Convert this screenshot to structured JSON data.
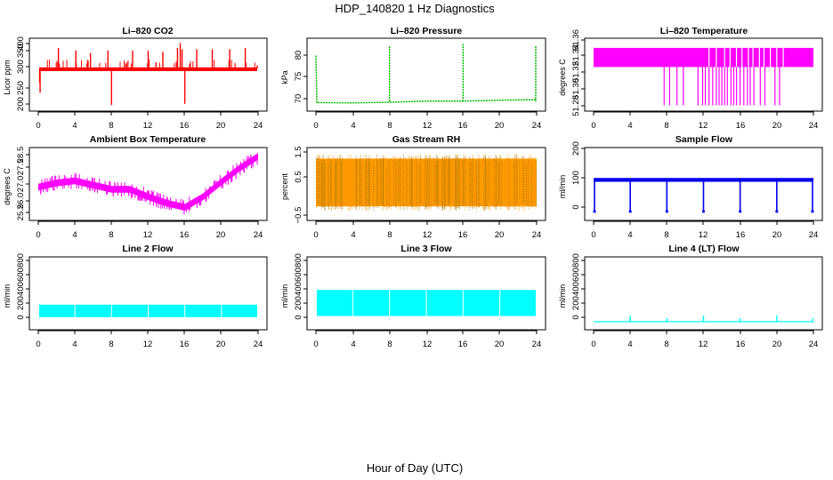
{
  "figure": {
    "title": "HDP_140820  1 Hz Diagnostics",
    "xlabel": "Hour of Day (UTC)"
  },
  "chart_data": [
    {
      "type": "line",
      "title": "Li–820 CO2",
      "ylabel": "Licor ppm",
      "color": "#ff0000",
      "x_ticks": [
        "0",
        "4",
        "8",
        "12",
        "16",
        "20",
        "24"
      ],
      "y_ticks": [
        "200",
        "250",
        "300",
        "350",
        "400"
      ],
      "xlim": [
        0,
        24
      ],
      "ylim": [
        180,
        445
      ],
      "baseline": 337,
      "band_low": 327,
      "band_high": 342,
      "spikes": [
        {
          "x": 0.15,
          "y": 280
        },
        {
          "x": 0.2,
          "y": 240
        },
        {
          "x": 2.2,
          "y": 420
        },
        {
          "x": 4.1,
          "y": 410
        },
        {
          "x": 5.7,
          "y": 400
        },
        {
          "x": 7.6,
          "y": 410
        },
        {
          "x": 8.0,
          "y": 190
        },
        {
          "x": 10.3,
          "y": 410
        },
        {
          "x": 12.0,
          "y": 410
        },
        {
          "x": 13.6,
          "y": 405
        },
        {
          "x": 15.2,
          "y": 420
        },
        {
          "x": 15.5,
          "y": 440
        },
        {
          "x": 15.7,
          "y": 415
        },
        {
          "x": 16.0,
          "y": 195
        },
        {
          "x": 17.3,
          "y": 415
        },
        {
          "x": 19.0,
          "y": 415
        },
        {
          "x": 20.9,
          "y": 415
        },
        {
          "x": 22.6,
          "y": 420
        },
        {
          "x": 23.9,
          "y": 350
        }
      ]
    },
    {
      "type": "line",
      "title": "Li–820 Pressure",
      "ylabel": "kPa",
      "color": "#00bb00",
      "x_ticks": [
        "0",
        "4",
        "8",
        "12",
        "16",
        "20",
        "24"
      ],
      "y_ticks": [
        "70",
        "75",
        "80"
      ],
      "xlim": [
        0,
        24
      ],
      "ylim": [
        66.3,
        88.7
      ],
      "points": [
        {
          "x": 0,
          "y": 84
        },
        {
          "x": 0.1,
          "y": 68
        },
        {
          "x": 4,
          "y": 67.9
        },
        {
          "x": 8,
          "y": 68.1
        },
        {
          "x": 12,
          "y": 68.5
        },
        {
          "x": 16,
          "y": 68.5
        },
        {
          "x": 20,
          "y": 68.8
        },
        {
          "x": 24,
          "y": 69
        }
      ],
      "spikes": [
        {
          "x": 8.0,
          "y": 87.5
        },
        {
          "x": 16.0,
          "y": 88
        },
        {
          "x": 23.9,
          "y": 87.5
        }
      ]
    },
    {
      "type": "line",
      "title": "Li–820 Temperature",
      "ylabel": "degrees C",
      "color": "#ff00ff",
      "x_ticks": [
        "0",
        "4",
        "8",
        "12",
        "16",
        "20",
        "24"
      ],
      "y_ticks": [
        "51.28",
        "51.30",
        "51.32",
        "51.34",
        "51.36"
      ],
      "xlim": [
        0,
        24
      ],
      "ylim": [
        51.277,
        51.363
      ],
      "level_high": 51.355,
      "level_low": 51.33,
      "level_min": 51.28,
      "drops": [
        7.7,
        8.3,
        9.1,
        9.8,
        11.4,
        11.9,
        12.2,
        12.6,
        13.0,
        13.4,
        13.7,
        14.0,
        14.3,
        14.6,
        15.0,
        15.3,
        15.6,
        16.0,
        16.4,
        16.8,
        17.1,
        17.5,
        18.2,
        18.7,
        19.8,
        20.3
      ],
      "gaps": [
        12.6,
        13.4,
        14.3,
        14.9,
        15.6,
        16.2,
        16.9,
        17.4,
        18.1,
        18.6,
        19.3,
        20.0,
        20.7
      ]
    },
    {
      "type": "line",
      "title": "Ambient Box Temperature",
      "ylabel": "degrees C",
      "color": "#ff00ff",
      "x_ticks": [
        "0",
        "4",
        "8",
        "12",
        "16",
        "20",
        "24"
      ],
      "y_ticks": [
        "25.5",
        "26.0",
        "27.0",
        "27.5",
        "28.5"
      ],
      "xlim": [
        0,
        24
      ],
      "ylim": [
        25.55,
        28.65
      ],
      "points": [
        {
          "x": 0,
          "y": 26.95
        },
        {
          "x": 2,
          "y": 27.15
        },
        {
          "x": 4,
          "y": 27.25
        },
        {
          "x": 6,
          "y": 27.05
        },
        {
          "x": 8,
          "y": 26.85
        },
        {
          "x": 10,
          "y": 26.85
        },
        {
          "x": 12,
          "y": 26.5
        },
        {
          "x": 14,
          "y": 26.2
        },
        {
          "x": 16,
          "y": 26.0
        },
        {
          "x": 18,
          "y": 26.5
        },
        {
          "x": 20,
          "y": 27.2
        },
        {
          "x": 22,
          "y": 27.85
        },
        {
          "x": 24,
          "y": 28.4
        }
      ],
      "band": 0.32
    },
    {
      "type": "line",
      "title": "Gas Stream RH",
      "ylabel": "percent",
      "color": "#ff9900",
      "color2": "#aa7700",
      "x_ticks": [
        "0",
        "4",
        "8",
        "12",
        "16",
        "20",
        "24"
      ],
      "y_ticks": [
        "−0.5",
        "0.5",
        "1.5"
      ],
      "xlim": [
        0,
        24
      ],
      "ylim": [
        -0.65,
        1.55
      ],
      "band_low": -0.45,
      "band_high": 1.45
    },
    {
      "type": "line",
      "title": "Sample Flow",
      "ylabel": "ml/min",
      "color": "#0000ee",
      "x_ticks": [
        "0",
        "4",
        "8",
        "12",
        "16",
        "20",
        "24"
      ],
      "y_ticks": [
        "0",
        "100",
        "200"
      ],
      "xlim": [
        0,
        24
      ],
      "ylim": [
        -20,
        220
      ],
      "baseline": 115,
      "band": 14,
      "drops": [
        0.1,
        4.0,
        8.0,
        12.0,
        16.0,
        20.0,
        23.9
      ]
    },
    {
      "type": "line",
      "title": "Line 2 Flow",
      "ylabel": "ml/min",
      "color": "#00ffff",
      "x_ticks": [
        "0",
        "4",
        "8",
        "12",
        "16",
        "20",
        "24"
      ],
      "y_ticks": [
        "0",
        "200",
        "400",
        "600",
        "800"
      ],
      "xlim": [
        0,
        24
      ],
      "ylim": [
        -80,
        1080
      ],
      "band_low": 80,
      "band_high": 300,
      "gaps": [
        4.0,
        8.0,
        12.0,
        16.0,
        20.0
      ]
    },
    {
      "type": "line",
      "title": "Line 3 Flow",
      "ylabel": "ml/min",
      "color": "#00ffff",
      "x_ticks": [
        "0",
        "4",
        "8",
        "12",
        "16",
        "20",
        "24"
      ],
      "y_ticks": [
        "0",
        "200",
        "400",
        "600",
        "800"
      ],
      "xlim": [
        0,
        24
      ],
      "ylim": [
        -80,
        1080
      ],
      "band_low": 100,
      "band_high": 560,
      "gaps": [
        4.0,
        8.0,
        12.0,
        16.0,
        20.0
      ]
    },
    {
      "type": "line",
      "title": "Line 4 (LT) Flow",
      "ylabel": "ml/min",
      "color": "#00ffff",
      "x_ticks": [
        "0",
        "4",
        "8",
        "12",
        "16",
        "20",
        "24"
      ],
      "y_ticks": [
        "0",
        "200",
        "400",
        "600",
        "800"
      ],
      "xlim": [
        0,
        24
      ],
      "ylim": [
        -80,
        1080
      ],
      "baseline": 0,
      "spikes": [
        {
          "x": 4.0,
          "y": 110
        },
        {
          "x": 8.0,
          "y": 60
        },
        {
          "x": 12.0,
          "y": 110
        },
        {
          "x": 16.0,
          "y": 60
        },
        {
          "x": 20.0,
          "y": 110
        },
        {
          "x": 23.9,
          "y": 60
        }
      ]
    }
  ]
}
